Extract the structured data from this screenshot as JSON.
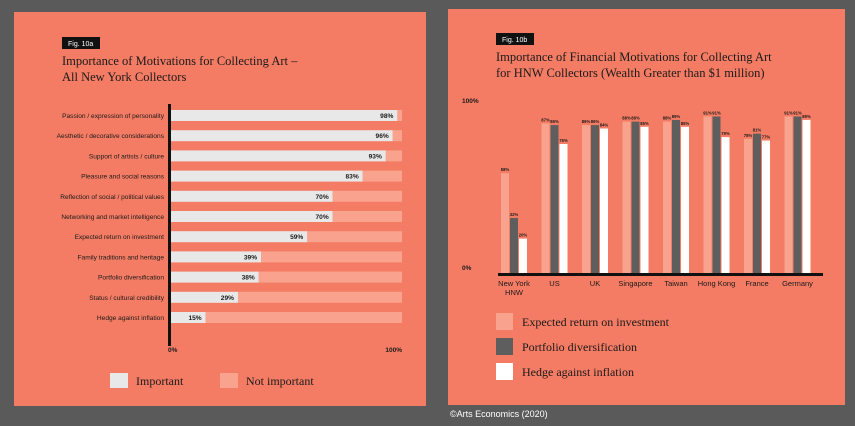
{
  "colors": {
    "background": "#5a5a5a",
    "panel": "#f47c64",
    "important": "#e8e8e8",
    "not_important": "#f9a28d",
    "expected_return": "#f9a28d",
    "portfolio": "#5e5e5e",
    "hedge": "#ffffff",
    "axis": "#111111"
  },
  "copyright": "©Arts Economics (2020)",
  "chart_data": [
    {
      "type": "bar",
      "orientation": "horizontal",
      "stacked": true,
      "fig_tag": "Fig. 10a",
      "title": "Importance of Motivations for Collecting Art –",
      "subtitle": "All New York Collectors",
      "categories": [
        "Passion / expression of personality",
        "Aesthetic / decorative considerations",
        "Support of artists / culture",
        "Pleasure and social reasons",
        "Reflection of social / political values",
        "Networking and market intelligence",
        "Expected return on investment",
        "Family traditions and heritage",
        "Portfolio diversification",
        "Status / cultural credibility",
        "Hedge against inflation"
      ],
      "series": [
        {
          "name": "Important",
          "values": [
            98,
            96,
            93,
            83,
            70,
            70,
            59,
            39,
            38,
            29,
            15
          ]
        },
        {
          "name": "Not important",
          "values": [
            2,
            4,
            7,
            17,
            30,
            30,
            41,
            61,
            62,
            71,
            85
          ]
        }
      ],
      "value_labels": [
        "98%",
        "96%",
        "93%",
        "83%",
        "70%",
        "70%",
        "59%",
        "39%",
        "38%",
        "29%",
        "15%"
      ],
      "xlim": [
        0,
        100
      ],
      "x_tick_labels": [
        "0%",
        "100%"
      ],
      "legend_position": "bottom"
    },
    {
      "type": "bar",
      "orientation": "vertical",
      "grouped": true,
      "fig_tag": "Fig. 10b",
      "title": "Importance of Financial Motivations for Collecting Art",
      "subtitle": "for HNW Collectors (Wealth Greater than $1 million)",
      "categories": [
        [
          "New York",
          "HNW"
        ],
        [
          "US"
        ],
        [
          "UK"
        ],
        [
          "Singapore"
        ],
        [
          "Taiwan"
        ],
        [
          "Hong Kong"
        ],
        [
          "France"
        ],
        [
          "Germany"
        ]
      ],
      "series": [
        {
          "name": "Expected return on investment",
          "values": [
            58,
            87,
            86,
            88,
            88,
            91,
            78,
            91
          ]
        },
        {
          "name": "Portfolio diversification",
          "values": [
            32,
            86,
            86,
            88,
            89,
            91,
            81,
            91
          ]
        },
        {
          "name": "Hedge against inflation",
          "values": [
            20,
            75,
            84,
            85,
            85,
            79,
            77,
            89
          ]
        }
      ],
      "value_labels": [
        [
          "58%",
          "32%",
          "20%"
        ],
        [
          "87%",
          "86%",
          "75%"
        ],
        [
          "86%",
          "86%",
          "84%"
        ],
        [
          "88%",
          "88%",
          "85%"
        ],
        [
          "88%",
          "89%",
          "85%"
        ],
        [
          "91%",
          "91%",
          "79%"
        ],
        [
          "78%",
          "81%",
          "77%"
        ],
        [
          "91%",
          "91%",
          "89%"
        ]
      ],
      "ylim": [
        0,
        100
      ],
      "y_tick_labels": [
        "100%",
        "0%"
      ],
      "legend_position": "bottom-left"
    }
  ]
}
